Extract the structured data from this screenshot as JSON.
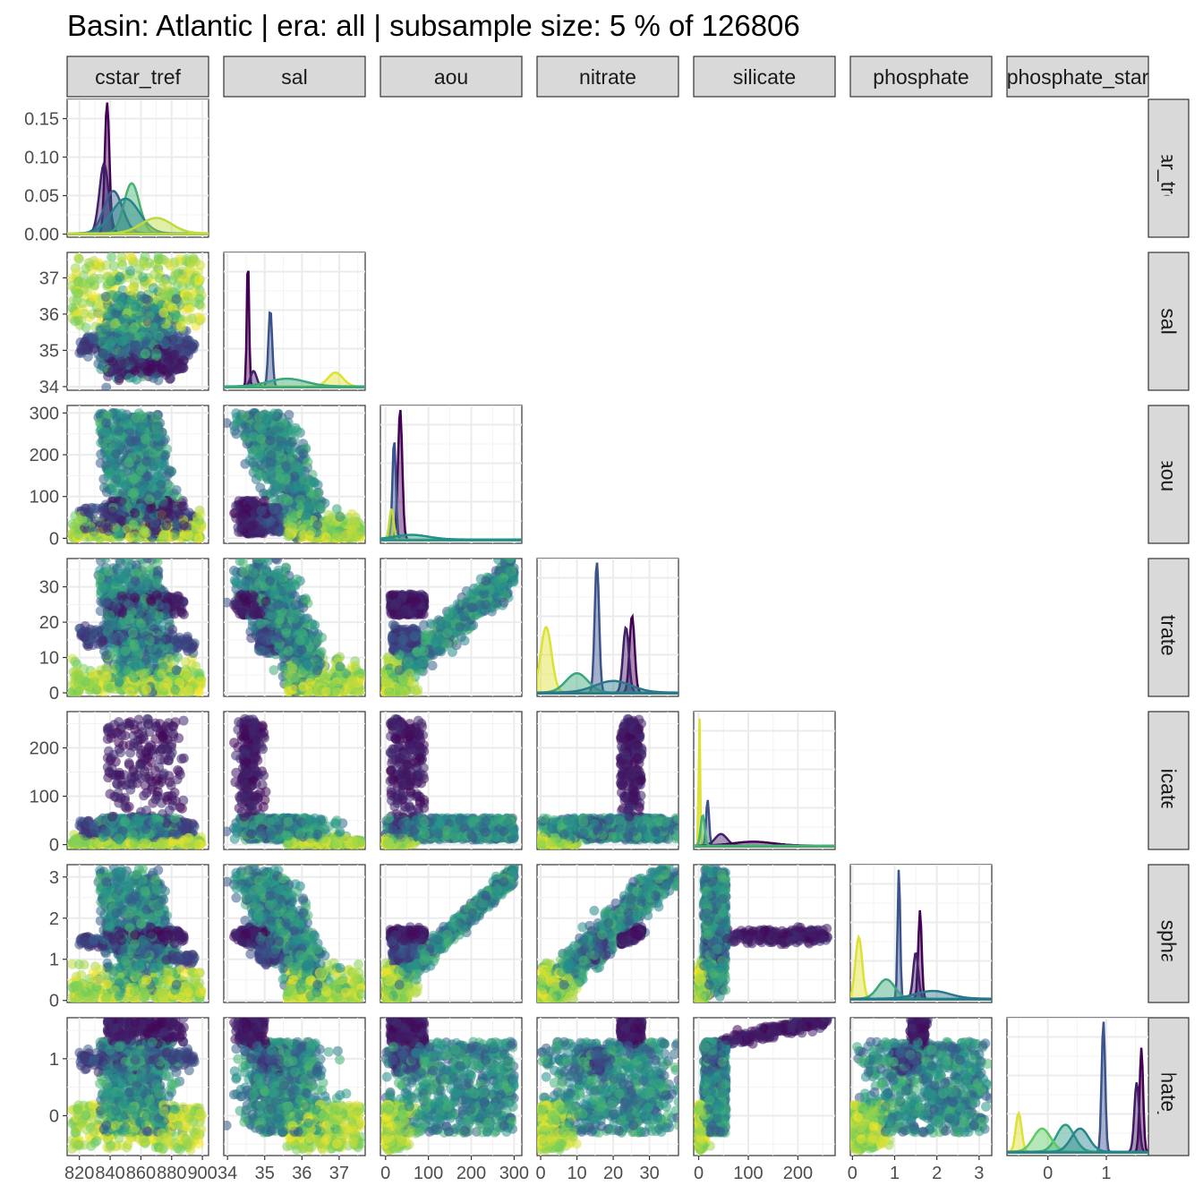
{
  "chart_data": {
    "type": "scatter",
    "subtype": "pairs-matrix",
    "title": "Basin: Atlantic | era: all | subsample size: 5 % of 126806",
    "variables": [
      "cstar_tref",
      "sal",
      "aou",
      "nitrate",
      "silicate",
      "phosphate",
      "phosphate_star"
    ],
    "strip_labels": [
      "cstar_tref",
      "sal",
      "aou",
      "nitrate",
      "silicate",
      "phosphate",
      "phosphate_star"
    ],
    "diagonal": "density",
    "lower": "scatter",
    "upper": "blank",
    "grid": true,
    "legend": "none",
    "palette": [
      "#440154",
      "#3b528b",
      "#21918c",
      "#5ec962",
      "#fde725"
    ],
    "x_ticks": [
      {
        "values": [
          820,
          840,
          860,
          880,
          900
        ],
        "labels": [
          "820",
          "840",
          "860",
          "880",
          "900"
        ]
      },
      {
        "values": [
          34,
          35,
          36,
          37
        ],
        "labels": [
          "34",
          "35",
          "36",
          "37"
        ]
      },
      {
        "values": [
          0,
          100,
          200,
          300
        ],
        "labels": [
          "0",
          "100",
          "200",
          "300"
        ]
      },
      {
        "values": [
          0,
          10,
          20,
          30
        ],
        "labels": [
          "0",
          "10",
          "20",
          "30"
        ]
      },
      {
        "values": [
          0,
          100,
          200
        ],
        "labels": [
          "0",
          "100",
          "200"
        ]
      },
      {
        "values": [
          0,
          1,
          2,
          3
        ],
        "labels": [
          "0",
          "1",
          "2",
          "3"
        ]
      },
      {
        "values": [
          0,
          1
        ],
        "labels": [
          "0",
          "1"
        ]
      }
    ],
    "y_ticks": [
      {
        "values": [
          0.0,
          0.05,
          0.1,
          0.15
        ],
        "labels": [
          "0.00",
          "0.05",
          "0.10",
          "0.15"
        ]
      },
      {
        "values": [
          34,
          35,
          36,
          37
        ],
        "labels": [
          "34",
          "35",
          "36",
          "37"
        ]
      },
      {
        "values": [
          0,
          100,
          200,
          300
        ],
        "labels": [
          "0",
          "100",
          "200",
          "300"
        ]
      },
      {
        "values": [
          0,
          10,
          20,
          30
        ],
        "labels": [
          "0",
          "10",
          "20",
          "30"
        ]
      },
      {
        "values": [
          0,
          100,
          200
        ],
        "labels": [
          "0",
          "100",
          "200"
        ]
      },
      {
        "values": [
          0,
          1,
          2,
          3
        ],
        "labels": [
          "0",
          "1",
          "2",
          "3"
        ]
      },
      {
        "values": [
          0,
          1
        ],
        "labels": [
          "0",
          "1"
        ]
      }
    ],
    "ranges": [
      [
        812,
        904
      ],
      [
        33.9,
        37.7
      ],
      [
        -12,
        318
      ],
      [
        -1,
        38
      ],
      [
        -10,
        275
      ],
      [
        -0.05,
        3.3
      ],
      [
        -0.7,
        1.72
      ]
    ],
    "density_ylim": [
      -0.004,
      0.175
    ]
  }
}
